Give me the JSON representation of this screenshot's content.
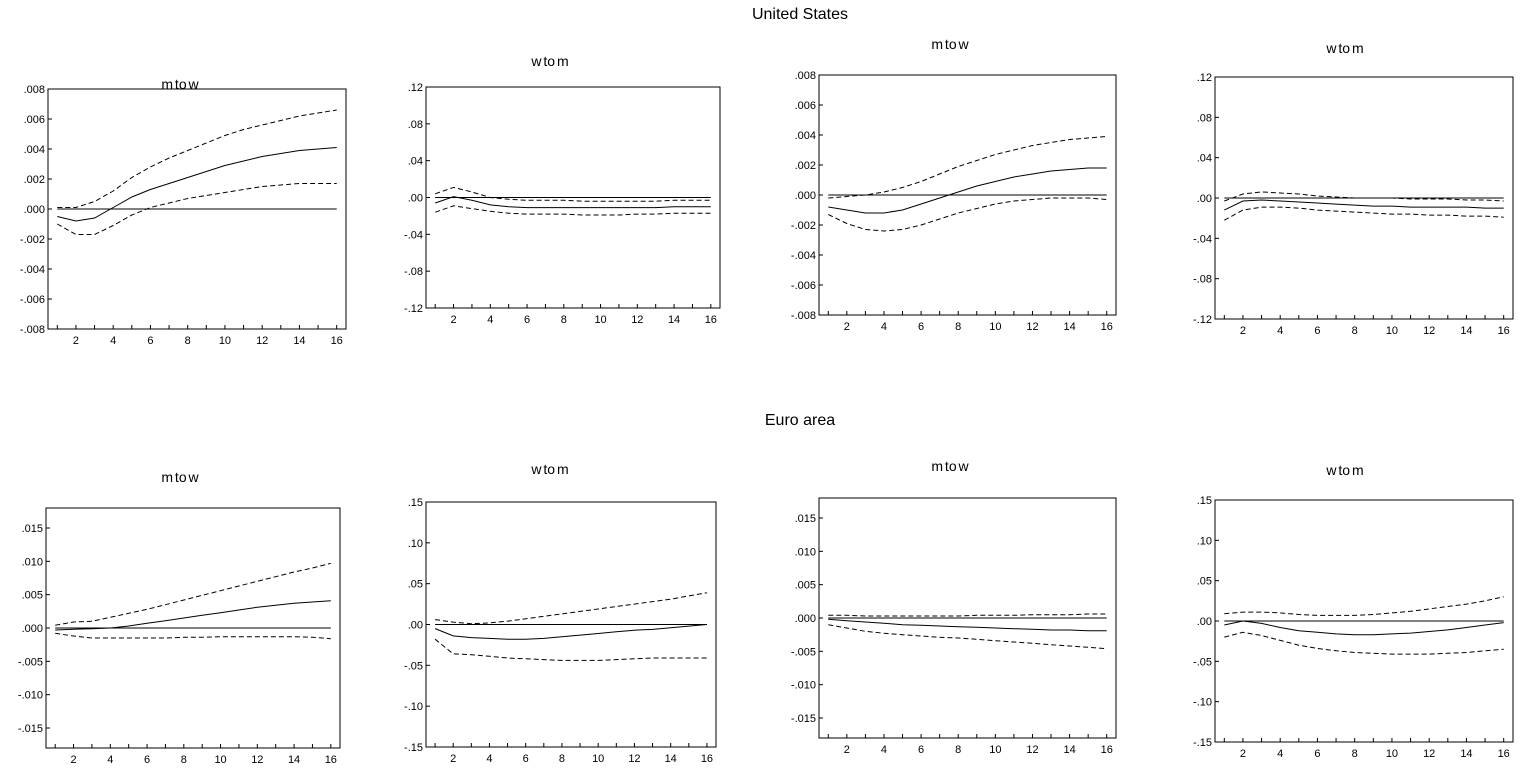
{
  "sections": [
    {
      "title": "United States"
    },
    {
      "title": "Euro area"
    }
  ],
  "chart_data": [
    {
      "type": "line",
      "title": "m to w",
      "section": "United States",
      "x": [
        1,
        2,
        3,
        4,
        5,
        6,
        7,
        8,
        9,
        10,
        11,
        12,
        13,
        14,
        15,
        16
      ],
      "xticks": [
        "2",
        "4",
        "6",
        "8",
        "10",
        "12",
        "14",
        "16"
      ],
      "yticks": [
        ".008",
        ".006",
        ".004",
        ".002",
        ".000",
        "-.002",
        "-.004",
        "-.006",
        "-.008"
      ],
      "ylim": [
        -0.008,
        0.008
      ],
      "series": [
        {
          "style": "solid",
          "values": [
            -0.0005,
            -0.0008,
            -0.0006,
            0.0001,
            0.0008,
            0.0013,
            0.0017,
            0.0021,
            0.0025,
            0.0029,
            0.0032,
            0.0035,
            0.0037,
            0.0039,
            0.004,
            0.0041
          ]
        },
        {
          "style": "dashed",
          "values": [
            0.0001,
            0.0001,
            0.0005,
            0.0012,
            0.0021,
            0.0028,
            0.0034,
            0.0039,
            0.0044,
            0.0049,
            0.0053,
            0.0056,
            0.0059,
            0.0062,
            0.0064,
            0.0066
          ]
        },
        {
          "style": "dashed",
          "values": [
            -0.001,
            -0.0017,
            -0.0017,
            -0.0011,
            -0.0004,
            0.0001,
            0.0004,
            0.0007,
            0.0009,
            0.0011,
            0.0013,
            0.0015,
            0.0016,
            0.0017,
            0.0017,
            0.0017
          ]
        },
        {
          "style": "solid",
          "values": [
            0,
            0,
            0,
            0,
            0,
            0,
            0,
            0,
            0,
            0,
            0,
            0,
            0,
            0,
            0,
            0
          ]
        }
      ]
    },
    {
      "type": "line",
      "title": "w to m",
      "section": "United States",
      "x": [
        1,
        2,
        3,
        4,
        5,
        6,
        7,
        8,
        9,
        10,
        11,
        12,
        13,
        14,
        15,
        16
      ],
      "xticks": [
        "2",
        "4",
        "6",
        "8",
        "10",
        "12",
        "14",
        "16"
      ],
      "yticks": [
        ".12",
        ".08",
        ".04",
        ".00",
        "-.04",
        "-.08",
        "-.12"
      ],
      "ylim": [
        -0.12,
        0.12
      ],
      "series": [
        {
          "style": "solid",
          "values": [
            -0.006,
            0.001,
            -0.003,
            -0.008,
            -0.01,
            -0.011,
            -0.011,
            -0.011,
            -0.011,
            -0.011,
            -0.011,
            -0.011,
            -0.011,
            -0.01,
            -0.01,
            -0.01
          ]
        },
        {
          "style": "dashed",
          "values": [
            0.004,
            0.011,
            0.006,
            0.0,
            -0.002,
            -0.003,
            -0.003,
            -0.003,
            -0.004,
            -0.004,
            -0.004,
            -0.004,
            -0.004,
            -0.003,
            -0.003,
            -0.003
          ]
        },
        {
          "style": "dashed",
          "values": [
            -0.016,
            -0.009,
            -0.012,
            -0.015,
            -0.017,
            -0.018,
            -0.018,
            -0.018,
            -0.019,
            -0.019,
            -0.019,
            -0.018,
            -0.018,
            -0.017,
            -0.017,
            -0.017
          ]
        },
        {
          "style": "solid",
          "values": [
            0,
            0,
            0,
            0,
            0,
            0,
            0,
            0,
            0,
            0,
            0,
            0,
            0,
            0,
            0,
            0
          ]
        }
      ]
    },
    {
      "type": "line",
      "title": "m to w",
      "section": "United States",
      "x": [
        1,
        2,
        3,
        4,
        5,
        6,
        7,
        8,
        9,
        10,
        11,
        12,
        13,
        14,
        15,
        16
      ],
      "xticks": [
        "2",
        "4",
        "6",
        "8",
        "10",
        "12",
        "14",
        "16"
      ],
      "yticks": [
        ".008",
        ".006",
        ".004",
        ".002",
        ".000",
        "-.002",
        "-.004",
        "-.006",
        "-.008"
      ],
      "ylim": [
        -0.008,
        0.008
      ],
      "series": [
        {
          "style": "solid",
          "values": [
            -0.0008,
            -0.001,
            -0.0012,
            -0.0012,
            -0.001,
            -0.0006,
            -0.0002,
            0.0002,
            0.0006,
            0.0009,
            0.0012,
            0.0014,
            0.0016,
            0.0017,
            0.0018,
            0.0018
          ]
        },
        {
          "style": "dashed",
          "values": [
            -0.0002,
            -0.0001,
            0.0,
            0.0002,
            0.0005,
            0.0009,
            0.0014,
            0.0019,
            0.0023,
            0.0027,
            0.003,
            0.0033,
            0.0035,
            0.0037,
            0.0038,
            0.0039
          ]
        },
        {
          "style": "dashed",
          "values": [
            -0.0013,
            -0.0019,
            -0.0023,
            -0.0024,
            -0.0023,
            -0.002,
            -0.0016,
            -0.0012,
            -0.0009,
            -0.0006,
            -0.0004,
            -0.0003,
            -0.0002,
            -0.0002,
            -0.0002,
            -0.0003
          ]
        },
        {
          "style": "solid",
          "values": [
            0,
            0,
            0,
            0,
            0,
            0,
            0,
            0,
            0,
            0,
            0,
            0,
            0,
            0,
            0,
            0
          ]
        }
      ]
    },
    {
      "type": "line",
      "title": "w to m",
      "section": "United States",
      "x": [
        1,
        2,
        3,
        4,
        5,
        6,
        7,
        8,
        9,
        10,
        11,
        12,
        13,
        14,
        15,
        16
      ],
      "xticks": [
        "2",
        "4",
        "6",
        "8",
        "10",
        "12",
        "14",
        "16"
      ],
      "yticks": [
        ".12",
        ".08",
        ".04",
        ".00",
        "-.04",
        "-.08",
        "-.12"
      ],
      "ylim": [
        -0.12,
        0.12
      ],
      "series": [
        {
          "style": "solid",
          "values": [
            -0.012,
            -0.003,
            -0.002,
            -0.003,
            -0.004,
            -0.005,
            -0.006,
            -0.007,
            -0.008,
            -0.008,
            -0.009,
            -0.009,
            -0.009,
            -0.009,
            -0.01,
            -0.01
          ]
        },
        {
          "style": "dashed",
          "values": [
            -0.003,
            0.004,
            0.006,
            0.005,
            0.004,
            0.002,
            0.001,
            0.0,
            0.0,
            0.0,
            -0.001,
            -0.001,
            -0.001,
            -0.002,
            -0.002,
            -0.003
          ]
        },
        {
          "style": "dashed",
          "values": [
            -0.022,
            -0.012,
            -0.009,
            -0.009,
            -0.01,
            -0.012,
            -0.013,
            -0.014,
            -0.015,
            -0.016,
            -0.016,
            -0.017,
            -0.017,
            -0.018,
            -0.018,
            -0.019
          ]
        },
        {
          "style": "solid",
          "values": [
            0,
            0,
            0,
            0,
            0,
            0,
            0,
            0,
            0,
            0,
            0,
            0,
            0,
            0,
            0,
            0
          ]
        }
      ]
    },
    {
      "type": "line",
      "title": "m to w",
      "section": "Euro area",
      "x": [
        1,
        2,
        3,
        4,
        5,
        6,
        7,
        8,
        9,
        10,
        11,
        12,
        13,
        14,
        15,
        16
      ],
      "xticks": [
        "2",
        "4",
        "6",
        "8",
        "10",
        "12",
        "14",
        "16"
      ],
      "yticks": [
        ".015",
        ".010",
        ".005",
        ".000",
        "-.005",
        "-.010",
        "-.015"
      ],
      "ylim": [
        -0.018,
        0.018
      ],
      "series": [
        {
          "style": "solid",
          "values": [
            -0.0003,
            -0.0002,
            -0.0001,
            0.0,
            0.0003,
            0.0007,
            0.0011,
            0.0015,
            0.0019,
            0.0023,
            0.0027,
            0.0031,
            0.0034,
            0.0037,
            0.0039,
            0.0041
          ]
        },
        {
          "style": "dashed",
          "values": [
            0.0004,
            0.0009,
            0.001,
            0.0016,
            0.0022,
            0.0028,
            0.0035,
            0.0042,
            0.0049,
            0.0056,
            0.0063,
            0.007,
            0.0077,
            0.0084,
            0.009,
            0.0097
          ]
        },
        {
          "style": "dashed",
          "values": [
            -0.0008,
            -0.0012,
            -0.0015,
            -0.0015,
            -0.0015,
            -0.0015,
            -0.0015,
            -0.0014,
            -0.0014,
            -0.0013,
            -0.0013,
            -0.0013,
            -0.0013,
            -0.0013,
            -0.0014,
            -0.0016
          ]
        },
        {
          "style": "solid",
          "values": [
            0,
            0,
            0,
            0,
            0,
            0,
            0,
            0,
            0,
            0,
            0,
            0,
            0,
            0,
            0,
            0
          ]
        }
      ]
    },
    {
      "type": "line",
      "title": "w to m",
      "section": "Euro area",
      "x": [
        1,
        2,
        3,
        4,
        5,
        6,
        7,
        8,
        9,
        10,
        11,
        12,
        13,
        14,
        15,
        16
      ],
      "xticks": [
        "2",
        "4",
        "6",
        "8",
        "10",
        "12",
        "14",
        "16"
      ],
      "yticks": [
        ".15",
        ".10",
        ".05",
        ".00",
        "-.05",
        "-.10",
        "-.15"
      ],
      "ylim": [
        -0.15,
        0.15
      ],
      "series": [
        {
          "style": "solid",
          "values": [
            -0.005,
            -0.014,
            -0.016,
            -0.017,
            -0.018,
            -0.018,
            -0.017,
            -0.015,
            -0.013,
            -0.011,
            -0.009,
            -0.007,
            -0.006,
            -0.004,
            -0.002,
            0.0
          ]
        },
        {
          "style": "dashed",
          "values": [
            0.006,
            0.003,
            0.001,
            0.002,
            0.004,
            0.007,
            0.01,
            0.013,
            0.016,
            0.019,
            0.022,
            0.025,
            0.028,
            0.031,
            0.035,
            0.039
          ]
        },
        {
          "style": "dashed",
          "values": [
            -0.018,
            -0.036,
            -0.037,
            -0.039,
            -0.041,
            -0.042,
            -0.043,
            -0.044,
            -0.044,
            -0.044,
            -0.043,
            -0.042,
            -0.041,
            -0.041,
            -0.041,
            -0.041
          ]
        },
        {
          "style": "solid",
          "values": [
            0,
            0,
            0,
            0,
            0,
            0,
            0,
            0,
            0,
            0,
            0,
            0,
            0,
            0,
            0,
            0
          ]
        }
      ]
    },
    {
      "type": "line",
      "title": "m to w",
      "section": "Euro area",
      "x": [
        1,
        2,
        3,
        4,
        5,
        6,
        7,
        8,
        9,
        10,
        11,
        12,
        13,
        14,
        15,
        16
      ],
      "xticks": [
        "2",
        "4",
        "6",
        "8",
        "10",
        "12",
        "14",
        "16"
      ],
      "yticks": [
        ".015",
        ".010",
        ".005",
        ".000",
        "-.005",
        "-.010",
        "-.015"
      ],
      "ylim": [
        -0.018,
        0.018
      ],
      "series": [
        {
          "style": "solid",
          "values": [
            -0.0002,
            -0.0004,
            -0.0006,
            -0.0008,
            -0.001,
            -0.0011,
            -0.0012,
            -0.0013,
            -0.0014,
            -0.0015,
            -0.0016,
            -0.0017,
            -0.0018,
            -0.0018,
            -0.0019,
            -0.0019
          ]
        },
        {
          "style": "dashed",
          "values": [
            0.0004,
            0.0004,
            0.0003,
            0.0003,
            0.0003,
            0.0003,
            0.0003,
            0.0003,
            0.0004,
            0.0004,
            0.0004,
            0.0005,
            0.0005,
            0.0005,
            0.0006,
            0.0006
          ]
        },
        {
          "style": "dashed",
          "values": [
            -0.001,
            -0.0015,
            -0.002,
            -0.0023,
            -0.0025,
            -0.0027,
            -0.0029,
            -0.003,
            -0.0032,
            -0.0034,
            -0.0036,
            -0.0038,
            -0.004,
            -0.0042,
            -0.0044,
            -0.0046
          ]
        },
        {
          "style": "solid",
          "values": [
            0,
            0,
            0,
            0,
            0,
            0,
            0,
            0,
            0,
            0,
            0,
            0,
            0,
            0,
            0,
            0
          ]
        }
      ]
    },
    {
      "type": "line",
      "title": "w to m",
      "section": "Euro area",
      "x": [
        1,
        2,
        3,
        4,
        5,
        6,
        7,
        8,
        9,
        10,
        11,
        12,
        13,
        14,
        15,
        16
      ],
      "xticks": [
        "2",
        "4",
        "6",
        "8",
        "10",
        "12",
        "14",
        "16"
      ],
      "yticks": [
        ".15",
        ".10",
        ".05",
        ".00",
        "-.05",
        "-.10",
        "-.15"
      ],
      "ylim": [
        -0.15,
        0.15
      ],
      "series": [
        {
          "style": "solid",
          "values": [
            -0.005,
            0.0,
            -0.003,
            -0.008,
            -0.012,
            -0.014,
            -0.016,
            -0.017,
            -0.017,
            -0.016,
            -0.015,
            -0.013,
            -0.011,
            -0.008,
            -0.005,
            -0.002
          ]
        },
        {
          "style": "dashed",
          "values": [
            0.009,
            0.011,
            0.011,
            0.01,
            0.008,
            0.007,
            0.007,
            0.007,
            0.008,
            0.01,
            0.012,
            0.015,
            0.018,
            0.021,
            0.025,
            0.03
          ]
        },
        {
          "style": "dashed",
          "values": [
            -0.02,
            -0.014,
            -0.018,
            -0.024,
            -0.03,
            -0.034,
            -0.037,
            -0.039,
            -0.04,
            -0.041,
            -0.041,
            -0.041,
            -0.04,
            -0.039,
            -0.037,
            -0.035
          ]
        },
        {
          "style": "solid",
          "values": [
            0,
            0,
            0,
            0,
            0,
            0,
            0,
            0,
            0,
            0,
            0,
            0,
            0,
            0,
            0,
            0
          ]
        }
      ]
    }
  ]
}
